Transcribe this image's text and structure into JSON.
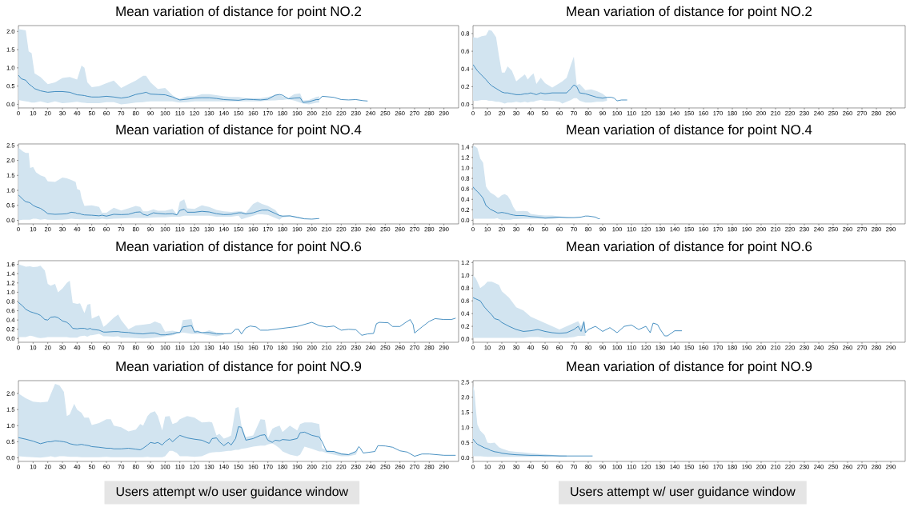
{
  "chart_data": [
    {
      "type": "line",
      "title": "Mean variation of distance for point NO.2",
      "xlim": [
        0,
        300
      ],
      "xticks": [
        0,
        10,
        20,
        30,
        40,
        50,
        60,
        70,
        80,
        90,
        100,
        110,
        120,
        130,
        140,
        150,
        160,
        170,
        180,
        190,
        200,
        210,
        220,
        230,
        240,
        250,
        260,
        270,
        280,
        290
      ],
      "ylim": [
        -0.1,
        2.16
      ],
      "yticks": [
        {
          "value": 0,
          "label": "0.0"
        },
        {
          "value": 0.5,
          "label": "0.5"
        },
        {
          "value": 1,
          "label": "1.0"
        },
        {
          "value": 1.5,
          "label": "1.5"
        },
        {
          "value": 2,
          "label": "2.0"
        }
      ],
      "series": [
        {
          "color": "#1f77b4",
          "x": [
            0,
            2,
            5,
            7,
            9,
            11,
            15,
            20,
            25,
            30,
            35,
            40,
            43,
            45,
            47,
            50,
            55,
            60,
            65,
            70,
            75,
            80,
            85,
            87,
            90,
            95,
            100,
            105,
            108,
            110,
            115,
            120,
            125,
            130,
            135,
            140,
            145,
            150,
            155,
            160,
            165,
            170,
            175,
            178,
            180,
            184,
            188,
            192,
            194,
            198,
            203,
            205,
            207,
            210,
            215,
            220,
            225,
            230,
            235,
            238
          ],
          "values": [
            0.8,
            0.7,
            0.66,
            0.56,
            0.5,
            0.43,
            0.37,
            0.33,
            0.35,
            0.35,
            0.33,
            0.26,
            0.25,
            0.24,
            0.22,
            0.2,
            0.2,
            0.22,
            0.2,
            0.17,
            0.2,
            0.27,
            0.31,
            0.33,
            0.28,
            0.27,
            0.26,
            0.2,
            0.15,
            0.12,
            0.14,
            0.17,
            0.18,
            0.18,
            0.16,
            0.13,
            0.12,
            0.11,
            0.14,
            0.13,
            0.12,
            0.14,
            0.25,
            0.27,
            0.25,
            0.15,
            0.17,
            0.18,
            0.05,
            0.07,
            0.13,
            0.13,
            0.22,
            0.21,
            0.19,
            0.13,
            0.12,
            0.13,
            0.1,
            0.09
          ],
          "upper": [
            2.06,
            2.05,
            2.03,
            1.45,
            1.4,
            0.85,
            0.75,
            0.55,
            0.6,
            0.72,
            0.75,
            0.68,
            1.06,
            1.0,
            0.6,
            0.47,
            0.5,
            0.58,
            0.65,
            0.45,
            0.55,
            0.65,
            0.78,
            0.78,
            0.6,
            0.42,
            0.45,
            0.25,
            0.17,
            0.15,
            0.22,
            0.22,
            0.28,
            0.28,
            0.25,
            0.22,
            0.2,
            0.2,
            0.17,
            0.17,
            0.17,
            0.2,
            0.25,
            0.26,
            0.22,
            0.18,
            0.28,
            0.3,
            0.1,
            0.12,
            0.2,
            0.22,
            null,
            null,
            null,
            null,
            null,
            null,
            null,
            null
          ],
          "lower": [
            0.12,
            0.1,
            0.08,
            0.07,
            0.05,
            0.05,
            0.08,
            0.03,
            0.08,
            0.03,
            0.05,
            0.07,
            0.05,
            0.04,
            0.03,
            0.03,
            0.03,
            0.06,
            0.06,
            0.0,
            0.02,
            0.05,
            0.06,
            0.07,
            0.08,
            0.08,
            0.08,
            0.08,
            0.06,
            0.05,
            0.06,
            0.08,
            0.08,
            0.08,
            0.08,
            0.08,
            0.08,
            0.08,
            0.08,
            0.08,
            0.08,
            0.1,
            0.11,
            0.12,
            0.12,
            0.14,
            0.1,
            0.05,
            0.02,
            0.0,
            0.04,
            0.05,
            null,
            null,
            null,
            null,
            null,
            null,
            null,
            null
          ]
        }
      ]
    },
    {
      "type": "line",
      "title": "Mean variation of distance for point NO.2",
      "xlim": [
        0,
        300
      ],
      "xticks": [
        0,
        10,
        20,
        30,
        40,
        50,
        60,
        70,
        80,
        90,
        100,
        110,
        120,
        130,
        140,
        150,
        160,
        170,
        180,
        190,
        200,
        210,
        220,
        230,
        240,
        250,
        260,
        270,
        280,
        290
      ],
      "ylim": [
        -0.04,
        0.89
      ],
      "yticks": [
        {
          "value": 0,
          "label": "0.0"
        },
        {
          "value": 0.2,
          "label": "0.2"
        },
        {
          "value": 0.4,
          "label": "0.4"
        },
        {
          "value": 0.6,
          "label": "0.6"
        },
        {
          "value": 0.8,
          "label": "0.8"
        }
      ],
      "series": [
        {
          "color": "#1f77b4",
          "x": [
            0,
            3,
            6,
            9,
            11,
            13,
            16,
            18,
            20,
            22,
            24,
            27,
            30,
            33,
            36,
            38,
            40,
            42,
            44,
            47,
            50,
            55,
            60,
            62,
            65,
            68,
            70,
            72,
            74,
            78,
            82,
            86,
            90,
            93,
            96,
            98,
            100,
            103,
            107
          ],
          "values": [
            0.45,
            0.38,
            0.33,
            0.28,
            0.24,
            0.21,
            0.18,
            0.16,
            0.14,
            0.13,
            0.13,
            0.12,
            0.11,
            0.11,
            0.12,
            0.12,
            0.13,
            0.12,
            0.11,
            0.13,
            0.12,
            0.13,
            0.13,
            0.13,
            0.13,
            0.18,
            0.22,
            0.2,
            0.13,
            0.12,
            0.1,
            0.08,
            0.07,
            0.08,
            0.08,
            0.07,
            0.04,
            0.05,
            0.05
          ],
          "upper": [
            0.76,
            0.75,
            0.77,
            0.78,
            0.84,
            0.83,
            0.76,
            0.55,
            0.36,
            0.36,
            0.43,
            0.38,
            0.26,
            0.3,
            0.34,
            0.28,
            0.32,
            0.35,
            0.23,
            0.3,
            0.24,
            0.19,
            0.24,
            0.26,
            0.3,
            0.45,
            0.54,
            0.22,
            0.23,
            0.16,
            0.17,
            0.15,
            0.12,
            0.08,
            null,
            null,
            null,
            null,
            null
          ],
          "lower": [
            0.04,
            0.04,
            0.05,
            0.05,
            0.04,
            0.04,
            0.03,
            0.03,
            0.02,
            0.01,
            0.02,
            0.02,
            0.03,
            0.02,
            0.03,
            0.02,
            0.03,
            0.03,
            0.04,
            0.05,
            0.04,
            0.04,
            0.03,
            0.01,
            0.03,
            0.05,
            0.07,
            0.07,
            0.04,
            0.02,
            0.02,
            0.03,
            0.03,
            0.04,
            null,
            null,
            null,
            null,
            null
          ]
        }
      ]
    },
    {
      "type": "line",
      "title": "Mean variation of distance for point NO.4",
      "xlim": [
        0,
        300
      ],
      "xticks": [
        0,
        10,
        20,
        30,
        40,
        50,
        60,
        70,
        80,
        90,
        100,
        110,
        120,
        130,
        140,
        150,
        160,
        170,
        180,
        190,
        200,
        210,
        220,
        230,
        240,
        250,
        260,
        270,
        280,
        290
      ],
      "ylim": [
        -0.12,
        2.55
      ],
      "yticks": [
        {
          "value": 0,
          "label": "0.0"
        },
        {
          "value": 0.5,
          "label": "0.5"
        },
        {
          "value": 1,
          "label": "1.0"
        },
        {
          "value": 1.5,
          "label": "1.5"
        },
        {
          "value": 2,
          "label": "2.0"
        },
        {
          "value": 2.5,
          "label": "2.5"
        }
      ],
      "series": [
        {
          "color": "#1f77b4",
          "x": [
            0,
            3,
            5,
            7,
            8,
            10,
            12,
            15,
            18,
            20,
            25,
            30,
            33,
            36,
            39,
            40,
            42,
            43,
            45,
            50,
            55,
            57,
            60,
            65,
            70,
            75,
            80,
            83,
            85,
            88,
            92,
            95,
            100,
            105,
            108,
            110,
            113,
            115,
            120,
            125,
            130,
            135,
            140,
            145,
            150,
            152,
            155,
            160,
            163,
            166,
            170,
            175,
            178,
            180,
            185,
            190,
            195,
            200,
            205
          ],
          "values": [
            0.85,
            0.7,
            0.62,
            0.6,
            0.58,
            0.5,
            0.45,
            0.4,
            0.3,
            0.22,
            0.2,
            0.21,
            0.22,
            0.27,
            0.25,
            0.23,
            0.22,
            0.2,
            0.18,
            0.17,
            0.15,
            0.17,
            0.14,
            0.2,
            0.19,
            0.2,
            0.27,
            0.28,
            0.2,
            0.16,
            0.25,
            0.23,
            0.21,
            0.22,
            0.18,
            0.33,
            0.37,
            0.27,
            0.27,
            0.3,
            0.28,
            0.22,
            0.19,
            0.2,
            0.25,
            0.25,
            0.21,
            0.25,
            0.3,
            0.34,
            0.34,
            0.23,
            0.16,
            0.14,
            0.15,
            0.1,
            0.05,
            0.04,
            0.06
          ],
          "upper": [
            2.42,
            2.3,
            2.25,
            2.25,
            1.75,
            1.78,
            1.6,
            1.5,
            1.45,
            1.3,
            1.28,
            1.43,
            1.4,
            1.35,
            1.28,
            1.05,
            1.0,
            0.75,
            0.48,
            0.5,
            0.45,
            0.25,
            0.25,
            0.42,
            0.33,
            0.4,
            0.48,
            0.45,
            0.3,
            0.3,
            0.37,
            0.32,
            0.32,
            0.38,
            0.2,
            0.62,
            0.7,
            0.4,
            0.38,
            0.5,
            0.45,
            0.35,
            0.3,
            0.28,
            0.3,
            0.3,
            0.25,
            0.55,
            0.62,
            0.55,
            0.48,
            0.35,
            0.17,
            0.15,
            0.15,
            0.12,
            0.06,
            null,
            null
          ],
          "lower": [
            0.0,
            0.02,
            0.02,
            0.02,
            0.02,
            0.05,
            0.05,
            0.02,
            0.04,
            0.02,
            0.01,
            0.02,
            0.03,
            0.05,
            0.04,
            0.04,
            0.03,
            0.03,
            0.03,
            0.03,
            0.03,
            0.05,
            0.03,
            0.05,
            0.06,
            0.07,
            0.08,
            0.08,
            0.08,
            0.08,
            0.09,
            0.1,
            0.1,
            0.12,
            0.12,
            0.12,
            0.15,
            0.15,
            0.15,
            0.15,
            0.15,
            0.12,
            0.12,
            0.12,
            0.15,
            0.03,
            0.08,
            0.15,
            0.2,
            0.2,
            0.18,
            0.08,
            0.02,
            0.1,
            0.12,
            0.07,
            0.03,
            null,
            null
          ]
        }
      ]
    },
    {
      "type": "line",
      "title": "Mean variation of distance for point NO.4",
      "xlim": [
        0,
        300
      ],
      "xticks": [
        0,
        10,
        20,
        30,
        40,
        50,
        60,
        70,
        80,
        90,
        100,
        110,
        120,
        130,
        140,
        150,
        160,
        170,
        180,
        190,
        200,
        210,
        220,
        230,
        240,
        250,
        260,
        270,
        280,
        290
      ],
      "ylim": [
        -0.07,
        1.46
      ],
      "yticks": [
        {
          "value": 0,
          "label": "0.0"
        },
        {
          "value": 0.2,
          "label": "0.2"
        },
        {
          "value": 0.4,
          "label": "0.4"
        },
        {
          "value": 0.6,
          "label": "0.6"
        },
        {
          "value": 0.8,
          "label": "0.8"
        },
        {
          "value": 1,
          "label": "1.0"
        },
        {
          "value": 1.2,
          "label": "1.2"
        },
        {
          "value": 1.4,
          "label": "1.4"
        }
      ],
      "series": [
        {
          "color": "#1f77b4",
          "x": [
            0,
            1,
            3,
            5,
            7,
            9,
            10,
            12,
            15,
            17,
            18,
            20,
            22,
            24,
            26,
            28,
            30,
            35,
            38,
            40,
            45,
            50,
            55,
            60,
            65,
            70,
            75,
            78,
            80,
            85,
            87,
            88
          ],
          "values": [
            0.64,
            0.6,
            0.55,
            0.49,
            0.42,
            0.28,
            0.26,
            0.21,
            0.17,
            0.14,
            0.14,
            0.15,
            0.14,
            0.13,
            0.11,
            0.1,
            0.09,
            0.09,
            0.08,
            0.07,
            0.06,
            0.04,
            0.05,
            0.06,
            0.05,
            0.05,
            0.06,
            0.08,
            0.08,
            0.06,
            0.03,
            0.03
          ],
          "upper": [
            1.42,
            1.42,
            1.38,
            1.18,
            1.1,
            0.65,
            0.6,
            0.53,
            0.48,
            0.43,
            0.43,
            0.48,
            0.5,
            0.47,
            0.38,
            0.25,
            0.17,
            0.18,
            0.17,
            0.12,
            0.1,
            0.09,
            0.09,
            0.07,
            0.06,
            0.05,
            0.06,
            null,
            null,
            null,
            null,
            null
          ],
          "lower": [
            0.03,
            0.03,
            0.03,
            0.03,
            0.03,
            0.03,
            0.03,
            0.03,
            0.03,
            0.04,
            0.02,
            0.01,
            0.01,
            0.01,
            0.01,
            0.02,
            0.02,
            0.03,
            0.03,
            0.03,
            0.03,
            0.03,
            0.03,
            0.04,
            0.04,
            0.04,
            0.05,
            null,
            null,
            null,
            null,
            null
          ]
        }
      ]
    },
    {
      "type": "line",
      "title": "Mean variation of distance for point NO.6",
      "xlim": [
        0,
        300
      ],
      "xticks": [
        0,
        10,
        20,
        30,
        40,
        50,
        60,
        70,
        80,
        90,
        100,
        110,
        120,
        130,
        140,
        150,
        160,
        170,
        180,
        190,
        200,
        210,
        220,
        230,
        240,
        250,
        260,
        270,
        280,
        290
      ],
      "ylim": [
        -0.08,
        1.68
      ],
      "yticks": [
        {
          "value": 0,
          "label": "0.0"
        },
        {
          "value": 0.2,
          "label": "0.2"
        },
        {
          "value": 0.4,
          "label": "0.4"
        },
        {
          "value": 0.6,
          "label": "0.6"
        },
        {
          "value": 0.8,
          "label": "0.8"
        },
        {
          "value": 1,
          "label": "1.0"
        },
        {
          "value": 1.2,
          "label": "1.2"
        },
        {
          "value": 1.4,
          "label": "1.4"
        },
        {
          "value": 1.6,
          "label": "1.6"
        }
      ],
      "series": [
        {
          "color": "#1f77b4",
          "x": [
            0,
            3,
            5,
            8,
            10,
            13,
            15,
            18,
            20,
            22,
            25,
            27,
            30,
            33,
            35,
            37,
            40,
            42,
            45,
            47,
            49,
            50,
            55,
            58,
            60,
            65,
            68,
            70,
            75,
            80,
            85,
            90,
            93,
            97,
            100,
            105,
            108,
            110,
            112,
            118,
            120,
            122,
            125,
            130,
            135,
            140,
            145,
            148,
            150,
            152,
            155,
            158,
            162,
            165,
            170,
            180,
            190,
            200,
            205,
            210,
            215,
            220,
            225,
            230,
            234,
            238,
            242,
            244,
            246,
            252,
            255,
            260,
            264,
            267,
            269,
            270,
            275,
            280,
            284,
            290,
            295,
            298
          ],
          "values": [
            0.78,
            0.7,
            0.63,
            0.58,
            0.56,
            0.53,
            0.5,
            0.41,
            0.4,
            0.46,
            0.47,
            0.45,
            0.38,
            0.35,
            0.3,
            0.22,
            0.21,
            0.22,
            0.22,
            0.2,
            0.22,
            0.2,
            0.18,
            0.14,
            0.14,
            0.15,
            0.15,
            0.14,
            0.13,
            0.11,
            0.1,
            0.12,
            0.12,
            0.08,
            0.08,
            0.1,
            0.13,
            0.13,
            0.25,
            0.28,
            0.14,
            0.15,
            0.13,
            0.13,
            0.1,
            0.1,
            0.11,
            0.2,
            0.2,
            0.1,
            0.23,
            0.27,
            0.25,
            0.18,
            0.18,
            0.22,
            0.26,
            0.35,
            0.28,
            0.25,
            0.27,
            0.18,
            0.2,
            0.19,
            0.07,
            0.1,
            0.11,
            0.32,
            0.35,
            0.34,
            0.26,
            0.26,
            0.35,
            0.41,
            0.3,
            0.12,
            0.25,
            0.37,
            0.43,
            0.41,
            0.41,
            0.44
          ],
          "upper": [
            1.6,
            1.57,
            1.55,
            1.56,
            1.54,
            1.55,
            1.57,
            1.47,
            1.18,
            1.14,
            1.18,
            1.0,
            1.08,
            1.2,
            1.25,
            0.77,
            0.75,
            0.76,
            0.55,
            0.73,
            0.75,
            0.43,
            0.5,
            0.25,
            0.3,
            0.45,
            0.52,
            0.4,
            0.2,
            0.28,
            0.3,
            0.32,
            0.37,
            0.32,
            0.15,
            0.17,
            0.15,
            0.13,
            0.4,
            0.42,
            0.17,
            0.18,
            0.12,
            0.18,
            0.13,
            0.12,
            null,
            null,
            null,
            null,
            null,
            null,
            null,
            null,
            null,
            null,
            null,
            null,
            null,
            null,
            null,
            null,
            null,
            null,
            null,
            null,
            null,
            null,
            null,
            null,
            null,
            null,
            null,
            null,
            null,
            null,
            null,
            null,
            null,
            null,
            null,
            null
          ],
          "lower": [
            0.03,
            0.03,
            0.03,
            0.06,
            0.05,
            0.02,
            0.01,
            0.02,
            0.03,
            0.03,
            0.03,
            0.03,
            0.03,
            0.03,
            0.02,
            0.02,
            0.02,
            0.05,
            0.06,
            0.04,
            0.07,
            0.07,
            0.1,
            0.05,
            0.05,
            0.04,
            0.05,
            0.02,
            0.02,
            0.01,
            0.0,
            0.01,
            0.02,
            0.03,
            0.05,
            0.07,
            0.1,
            0.12,
            0.13,
            0.1,
            0.1,
            0.1,
            0.1,
            0.07,
            0.05,
            0.08,
            null,
            null,
            null,
            null,
            null,
            null,
            null,
            null,
            null,
            null,
            null,
            null,
            null,
            null,
            null,
            null,
            null,
            null,
            null,
            null,
            null,
            null,
            null,
            null,
            null,
            null,
            null,
            null,
            null,
            null,
            null,
            null,
            null,
            null,
            null,
            null
          ]
        }
      ]
    },
    {
      "type": "line",
      "title": "Mean variation of distance for point NO.6",
      "xlim": [
        0,
        300
      ],
      "xticks": [
        0,
        10,
        20,
        30,
        40,
        50,
        60,
        70,
        80,
        90,
        100,
        110,
        120,
        130,
        140,
        150,
        160,
        170,
        180,
        190,
        200,
        210,
        220,
        230,
        240,
        250,
        260,
        270,
        280,
        290
      ],
      "ylim": [
        -0.05,
        1.23
      ],
      "yticks": [
        {
          "value": 0,
          "label": "0.0"
        },
        {
          "value": 0.2,
          "label": "0.2"
        },
        {
          "value": 0.4,
          "label": "0.4"
        },
        {
          "value": 0.6,
          "label": "0.6"
        },
        {
          "value": 0.8,
          "label": "0.8"
        },
        {
          "value": 1,
          "label": "1.0"
        },
        {
          "value": 1.2,
          "label": "1.2"
        }
      ],
      "series": [
        {
          "color": "#1f77b4",
          "x": [
            0,
            2,
            5,
            8,
            10,
            13,
            15,
            18,
            20,
            25,
            30,
            35,
            40,
            45,
            50,
            55,
            60,
            65,
            70,
            73,
            75,
            77,
            78,
            80,
            85,
            90,
            95,
            100,
            105,
            110,
            115,
            120,
            123,
            125,
            128,
            130,
            133,
            135,
            140,
            145
          ],
          "values": [
            0.65,
            0.63,
            0.6,
            0.5,
            0.45,
            0.38,
            0.32,
            0.3,
            0.26,
            0.2,
            0.15,
            0.12,
            0.13,
            0.15,
            0.12,
            0.1,
            0.09,
            0.1,
            0.15,
            0.2,
            0.12,
            0.27,
            0.1,
            0.15,
            0.2,
            0.12,
            0.18,
            0.1,
            0.2,
            0.22,
            0.15,
            0.2,
            0.1,
            0.25,
            0.23,
            0.15,
            0.05,
            0.05,
            0.13,
            0.13
          ],
          "upper": [
            1.0,
            0.95,
            0.8,
            0.85,
            0.9,
            0.9,
            0.88,
            0.85,
            0.75,
            0.65,
            0.5,
            0.45,
            0.35,
            0.3,
            0.25,
            0.2,
            0.15,
            0.2,
            0.25,
            0.28,
            0.2,
            0.3,
            0.12,
            null,
            null,
            null,
            null,
            null,
            null,
            null,
            null,
            null,
            null,
            null,
            null,
            null,
            null,
            null,
            null,
            null
          ],
          "lower": [
            0.02,
            0.02,
            0.02,
            0.02,
            0.02,
            0.02,
            0.02,
            0.02,
            0.02,
            0.02,
            0.02,
            0.02,
            0.03,
            0.03,
            0.02,
            0.02,
            0.02,
            0.02,
            0.03,
            0.05,
            0.05,
            0.05,
            0.05,
            null,
            null,
            null,
            null,
            null,
            null,
            null,
            null,
            null,
            null,
            null,
            null,
            null,
            null,
            null,
            null,
            null
          ]
        }
      ]
    },
    {
      "type": "line",
      "title": "Mean variation of distance for point NO.9",
      "xlim": [
        0,
        300
      ],
      "xticks": [
        0,
        10,
        20,
        30,
        40,
        50,
        60,
        70,
        80,
        90,
        100,
        110,
        120,
        130,
        140,
        150,
        160,
        170,
        180,
        190,
        200,
        210,
        220,
        230,
        240,
        250,
        260,
        270,
        280,
        290
      ],
      "ylim": [
        -0.11,
        2.4
      ],
      "yticks": [
        {
          "value": 0,
          "label": "0.0"
        },
        {
          "value": 0.5,
          "label": "0.5"
        },
        {
          "value": 1,
          "label": "1.0"
        },
        {
          "value": 1.5,
          "label": "1.5"
        },
        {
          "value": 2,
          "label": "2.0"
        }
      ],
      "annotations": [
        "Users attempt w/o user guidance window"
      ],
      "series": [
        {
          "color": "#1f77b4",
          "x": [
            0,
            5,
            10,
            15,
            20,
            22,
            25,
            28,
            31,
            33,
            35,
            38,
            40,
            43,
            45,
            48,
            50,
            55,
            60,
            63,
            65,
            70,
            75,
            80,
            83,
            85,
            88,
            90,
            93,
            95,
            98,
            100,
            103,
            105,
            108,
            110,
            115,
            120,
            125,
            130,
            132,
            135,
            137,
            140,
            143,
            145,
            148,
            150,
            152,
            155,
            160,
            165,
            168,
            170,
            173,
            175,
            178,
            180,
            185,
            190,
            192,
            195,
            200,
            205,
            207,
            210,
            215,
            220,
            225,
            230,
            232,
            233,
            235,
            240,
            243,
            245,
            250,
            255,
            260,
            265,
            270,
            275,
            280,
            290,
            298
          ],
          "values": [
            0.63,
            0.58,
            0.52,
            0.44,
            0.5,
            0.5,
            0.53,
            0.52,
            0.5,
            0.48,
            0.44,
            0.41,
            0.4,
            0.42,
            0.4,
            0.38,
            0.35,
            0.33,
            0.3,
            0.3,
            0.28,
            0.28,
            0.3,
            0.27,
            0.25,
            0.3,
            0.4,
            0.48,
            0.45,
            0.48,
            0.4,
            0.5,
            0.6,
            0.5,
            0.62,
            0.7,
            0.62,
            0.58,
            0.55,
            0.45,
            0.6,
            0.62,
            0.5,
            0.38,
            0.48,
            0.4,
            0.6,
            0.97,
            0.95,
            0.55,
            0.6,
            0.7,
            0.72,
            0.55,
            0.48,
            0.55,
            0.53,
            0.57,
            0.55,
            0.6,
            0.78,
            0.8,
            0.7,
            0.65,
            0.5,
            0.2,
            0.2,
            0.12,
            0.1,
            0.2,
            0.35,
            0.3,
            0.15,
            0.18,
            0.2,
            0.38,
            0.37,
            0.33,
            0.22,
            0.18,
            0.05,
            0.12,
            0.12,
            0.08,
            0.08
          ],
          "upper": [
            2.0,
            1.85,
            1.75,
            1.72,
            1.75,
            1.98,
            2.3,
            2.25,
            2.05,
            1.3,
            1.35,
            1.68,
            1.5,
            1.4,
            1.25,
            1.25,
            1.02,
            1.08,
            1.2,
            1.2,
            1.0,
            0.95,
            0.82,
            0.88,
            1.05,
            1.0,
            1.3,
            1.4,
            1.45,
            1.3,
            0.85,
            1.28,
            1.3,
            1.05,
            1.1,
            1.2,
            1.3,
            1.25,
            1.1,
            1.12,
            1.1,
            0.7,
            0.75,
            0.6,
            0.65,
            0.7,
            1.55,
            1.58,
            1.0,
            0.65,
            0.7,
            1.2,
            1.18,
            0.6,
            0.9,
            0.95,
            1.0,
            0.8,
            1.0,
            0.85,
            1.05,
            1.1,
            1.1,
            1.05,
            0.3,
            0.25,
            0.2,
            0.15,
            0.12,
            0.2,
            0.3,
            null,
            null,
            null,
            null,
            null,
            null,
            null,
            null,
            null,
            null,
            null,
            null,
            null,
            null
          ],
          "lower": [
            0.05,
            0.03,
            0.02,
            0.01,
            0.03,
            0.05,
            0.02,
            0.05,
            0.05,
            0.04,
            0.03,
            0.03,
            0.03,
            0.02,
            0.02,
            0.02,
            0.02,
            0.02,
            0.03,
            0.02,
            0.02,
            0.02,
            0.02,
            0.02,
            0.02,
            0.02,
            0.03,
            0.02,
            0.02,
            0.02,
            0.02,
            0.05,
            0.22,
            0.22,
            0.15,
            0.05,
            0.05,
            0.03,
            0.05,
            0.15,
            0.17,
            0.18,
            0.18,
            0.2,
            0.22,
            0.22,
            0.25,
            0.25,
            0.28,
            0.3,
            0.35,
            0.38,
            0.38,
            0.42,
            0.45,
            0.4,
            0.3,
            0.2,
            0.1,
            0.05,
            0.1,
            0.35,
            0.28,
            0.2,
            0.2,
            0.15,
            0.1,
            0.05,
            0.05,
            0.1,
            0.3,
            null,
            null,
            null,
            null,
            null,
            null,
            null,
            null,
            null,
            null,
            null,
            null,
            null,
            null
          ]
        }
      ]
    },
    {
      "type": "line",
      "title": "Mean variation of distance for point NO.9",
      "xlim": [
        0,
        300
      ],
      "xticks": [
        0,
        10,
        20,
        30,
        40,
        50,
        60,
        70,
        80,
        90,
        100,
        110,
        120,
        130,
        140,
        150,
        160,
        170,
        180,
        190,
        200,
        210,
        220,
        230,
        240,
        250,
        260,
        270,
        280,
        290
      ],
      "ylim": [
        -0.12,
        2.55
      ],
      "yticks": [
        {
          "value": 0,
          "label": "0.0"
        },
        {
          "value": 0.5,
          "label": "0.5"
        },
        {
          "value": 1,
          "label": "1.0"
        },
        {
          "value": 1.5,
          "label": "1.5"
        },
        {
          "value": 2,
          "label": "2.0"
        },
        {
          "value": 2.5,
          "label": "2.5"
        }
      ],
      "annotations": [
        "Users attempt w/ user guidance window"
      ],
      "series": [
        {
          "color": "#1f77b4",
          "x": [
            0,
            1,
            2,
            3,
            5,
            8,
            10,
            12,
            15,
            18,
            20,
            25,
            30,
            35,
            40,
            45,
            50,
            55,
            60,
            65,
            70,
            75,
            80,
            83
          ],
          "values": [
            0.62,
            0.55,
            0.5,
            0.45,
            0.4,
            0.33,
            0.3,
            0.25,
            0.2,
            0.18,
            0.15,
            0.12,
            0.1,
            0.09,
            0.08,
            0.08,
            0.07,
            0.07,
            0.06,
            0.06,
            0.06,
            0.06,
            0.06,
            0.06
          ],
          "upper": [
            2.4,
            2.2,
            1.6,
            1.1,
            0.9,
            0.75,
            0.5,
            0.48,
            0.5,
            0.35,
            0.3,
            0.22,
            0.2,
            0.18,
            0.15,
            0.13,
            0.12,
            0.1,
            0.09,
            0.08,
            null,
            null,
            null,
            null
          ],
          "lower": [
            0.05,
            0.05,
            0.05,
            0.05,
            0.05,
            0.04,
            0.03,
            0.03,
            0.03,
            0.03,
            0.03,
            0.03,
            0.03,
            0.03,
            0.03,
            0.03,
            0.03,
            0.03,
            0.03,
            0.03,
            null,
            null,
            null,
            null
          ]
        }
      ]
    }
  ]
}
